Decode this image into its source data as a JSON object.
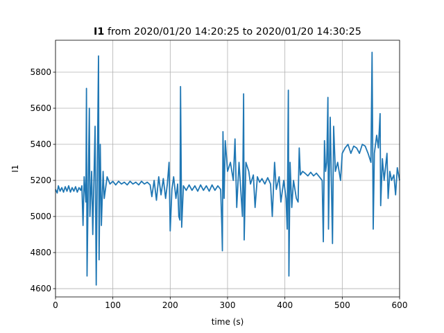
{
  "chart_data": {
    "type": "line",
    "title_bold": "I1",
    "title": "from 2020/01/20 14:20:25 to 2020/01/20 14:30:25",
    "x_label": "time (s)",
    "y_label": "I1",
    "color": "#1f77b4",
    "grid": true,
    "xlim": [
      0,
      600
    ],
    "xticks": [
      0,
      100,
      200,
      300,
      400,
      500,
      600
    ],
    "ylim": [
      4554,
      5977
    ],
    "yticks": [
      4600,
      4800,
      5000,
      5200,
      5400,
      5600,
      5800
    ],
    "x": [
      0,
      3,
      5,
      8,
      11,
      14,
      17,
      20,
      23,
      26,
      29,
      32,
      35,
      38,
      41,
      44,
      46,
      48,
      50,
      53,
      54,
      55,
      57,
      59,
      60,
      63,
      65,
      67,
      69,
      71,
      73,
      75,
      76,
      78,
      80,
      83,
      85,
      90,
      95,
      100,
      105,
      110,
      115,
      120,
      125,
      130,
      135,
      140,
      145,
      150,
      155,
      160,
      165,
      168,
      172,
      176,
      180,
      184,
      188,
      192,
      195,
      198,
      200,
      203,
      206,
      210,
      213,
      215,
      217,
      218,
      220,
      223,
      228,
      233,
      238,
      243,
      248,
      253,
      258,
      263,
      268,
      273,
      278,
      283,
      288,
      290,
      291,
      292,
      294,
      296,
      300,
      305,
      310,
      313,
      316,
      320,
      323,
      326,
      328,
      329,
      332,
      337,
      340,
      345,
      348,
      352,
      356,
      360,
      365,
      370,
      375,
      378,
      382,
      385,
      390,
      393,
      398,
      402,
      404,
      406,
      407,
      409,
      412,
      415,
      420,
      423,
      425,
      427,
      431,
      435,
      440,
      445,
      450,
      455,
      460,
      465,
      467,
      469,
      471,
      473,
      475,
      476,
      479,
      481,
      483,
      485,
      488,
      492,
      497,
      500,
      505,
      510,
      515,
      520,
      525,
      530,
      535,
      540,
      545,
      550,
      552,
      554,
      556,
      560,
      563,
      566,
      567,
      570,
      573,
      578,
      580,
      583,
      586,
      590,
      593,
      596,
      600
    ],
    "values": [
      5150,
      5130,
      5170,
      5140,
      5160,
      5135,
      5165,
      5140,
      5170,
      5135,
      5160,
      5140,
      5165,
      5135,
      5160,
      5145,
      5170,
      4950,
      5220,
      5080,
      5710,
      4670,
      5150,
      5600,
      5000,
      5250,
      4900,
      5200,
      5500,
      4620,
      5300,
      5890,
      4760,
      5400,
      4950,
      5250,
      5100,
      5220,
      5180,
      5195,
      5175,
      5195,
      5180,
      5190,
      5175,
      5195,
      5180,
      5190,
      5175,
      5195,
      5180,
      5190,
      5175,
      5110,
      5200,
      5090,
      5220,
      5120,
      5210,
      5100,
      5180,
      5300,
      4920,
      5150,
      5220,
      5100,
      5180,
      5000,
      4980,
      5720,
      4940,
      5170,
      5145,
      5175,
      5145,
      5170,
      5140,
      5175,
      5145,
      5170,
      5140,
      5175,
      5145,
      5170,
      5150,
      4950,
      4810,
      5470,
      5100,
      5420,
      5250,
      5300,
      5200,
      5430,
      5050,
      5300,
      5150,
      5000,
      5680,
      4870,
      5300,
      5250,
      5180,
      5230,
      5050,
      5220,
      5190,
      5210,
      5180,
      5215,
      5180,
      5000,
      5300,
      5150,
      5220,
      5080,
      5200,
      5100,
      4930,
      5700,
      4670,
      5300,
      5050,
      5200,
      5100,
      5080,
      5380,
      5230,
      5250,
      5240,
      5225,
      5245,
      5225,
      5240,
      5220,
      5200,
      4860,
      5420,
      5250,
      5300,
      5660,
      4930,
      5550,
      5200,
      4850,
      5500,
      5250,
      5300,
      5200,
      5350,
      5380,
      5400,
      5350,
      5390,
      5380,
      5350,
      5400,
      5390,
      5350,
      5300,
      5910,
      4930,
      5350,
      5450,
      5380,
      5570,
      5060,
      5320,
      5200,
      5350,
      5100,
      5250,
      5200,
      5230,
      5120,
      5270,
      5200
    ]
  }
}
